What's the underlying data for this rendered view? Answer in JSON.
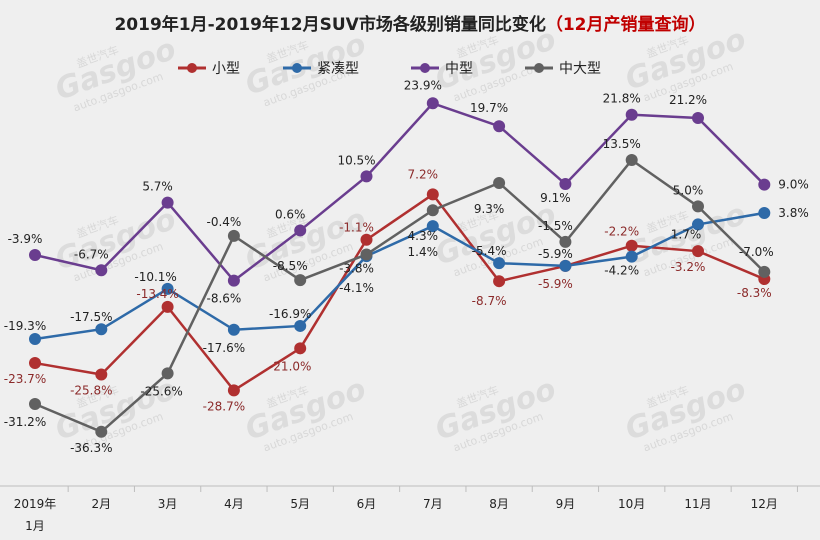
{
  "chart_data": {
    "type": "line",
    "title": "2019年1月-2019年12月SUV市场各级别销量同比变化",
    "subtitle": "（12月产销量查询）",
    "categories": [
      "2019年1月",
      "2月",
      "3月",
      "4月",
      "5月",
      "6月",
      "7月",
      "8月",
      "9月",
      "10月",
      "11月",
      "12月"
    ],
    "ylim": [
      -40,
      30
    ],
    "grid": false,
    "legend_position": "top",
    "series": [
      {
        "name": "小型",
        "color": "#b03030",
        "values": [
          -23.7,
          -25.8,
          -13.4,
          -28.7,
          -21.0,
          -1.1,
          7.2,
          -8.7,
          -5.9,
          -2.2,
          -3.2,
          -8.3
        ],
        "labels": [
          "-23.7%",
          "-25.8%",
          "-13.4%",
          "-28.7%",
          "-21.0%",
          "-1.1%",
          "7.2%",
          "-8.7%",
          "-5.9%",
          "-2.2%",
          "-3.2%",
          "-8.3%"
        ]
      },
      {
        "name": "紧凑型",
        "color": "#2e6aa8",
        "values": [
          -19.3,
          -17.5,
          -10.1,
          -17.6,
          -16.9,
          -4.1,
          1.4,
          -5.4,
          -5.9,
          -4.2,
          1.7,
          3.8
        ],
        "labels": [
          "-19.3%",
          "-17.5%",
          "-10.1%",
          "-17.6%",
          "-16.9%",
          "-4.1%",
          "1.4%",
          "-5.4%",
          "-5.9%",
          "-4.2%",
          "1.7%",
          "3.8%"
        ]
      },
      {
        "name": "中型",
        "color": "#6a3d8f",
        "values": [
          -3.9,
          -6.7,
          5.7,
          -8.6,
          0.6,
          10.5,
          23.9,
          19.7,
          9.1,
          21.8,
          21.2,
          9.0
        ],
        "labels": [
          "-3.9%",
          "-6.7%",
          "5.7%",
          "-8.6%",
          "0.6%",
          "10.5%",
          "23.9%",
          "19.7%",
          "9.1%",
          "21.8%",
          "21.2%",
          "9.0%"
        ]
      },
      {
        "name": "中大型",
        "color": "#616161",
        "values": [
          -31.2,
          -36.3,
          -25.6,
          -0.4,
          -8.5,
          -3.8,
          4.3,
          9.3,
          -1.5,
          13.5,
          5.0,
          -7.0
        ],
        "labels": [
          "-31.2%",
          "-36.3%",
          "-25.6%",
          "-0.4%",
          "-8.5%",
          "-3.8%",
          "4.3%",
          "9.3%",
          "-1.5%",
          "13.5%",
          "5.0%",
          "-7.0%"
        ]
      }
    ]
  },
  "watermark": {
    "brand": "Gasgoo",
    "cn": "盖世汽车",
    "url": "auto.gasgoo.com"
  }
}
